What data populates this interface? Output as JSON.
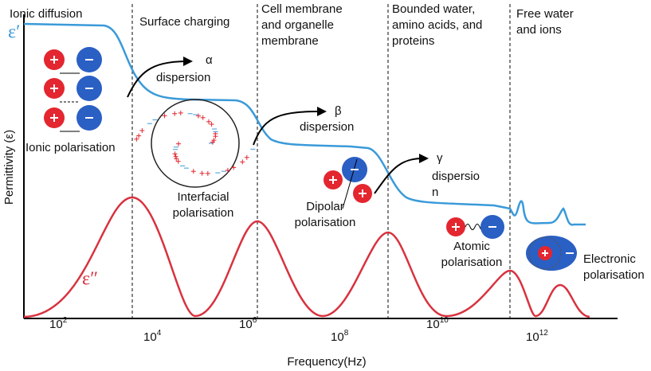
{
  "regions": [
    {
      "lines": [
        "Ionic diffusion"
      ]
    },
    {
      "lines": [
        "Surface charging"
      ]
    },
    {
      "lines": [
        "Cell membrane",
        "and organelle",
        "membrane"
      ]
    },
    {
      "lines": [
        "Bounded water,",
        "amino acids, and",
        "proteins"
      ]
    },
    {
      "lines": [
        "Free water",
        "and ions"
      ]
    }
  ],
  "curves": {
    "real_label": "ε′",
    "imaginary_label": "ε″"
  },
  "dispersions": [
    {
      "symbol": "α",
      "lines": [
        "dispersion"
      ]
    },
    {
      "symbol": "β",
      "lines": [
        "dispersion"
      ]
    },
    {
      "symbol": "γ",
      "lines": [
        "dispersio",
        "n"
      ]
    }
  ],
  "mechanisms": [
    {
      "lines": [
        "Ionic polarisation"
      ]
    },
    {
      "lines": [
        "Interfacial",
        "polarisation"
      ]
    },
    {
      "lines": [
        "Dipolar",
        "polarisation"
      ]
    },
    {
      "lines": [
        "Atomic",
        "polarisation"
      ]
    },
    {
      "lines": [
        "Electronic",
        "polarisation"
      ]
    }
  ],
  "x_ticks": [
    {
      "base": "10",
      "exponent": "2"
    },
    {
      "base": "10",
      "exponent": "4"
    },
    {
      "base": "10",
      "exponent": "6"
    },
    {
      "base": "10",
      "exponent": "8"
    },
    {
      "base": "10",
      "exponent": "10"
    },
    {
      "base": "10",
      "exponent": "12"
    }
  ],
  "x_label": "Frequency(Hz)",
  "y_label": "Permittivity (ε)"
}
